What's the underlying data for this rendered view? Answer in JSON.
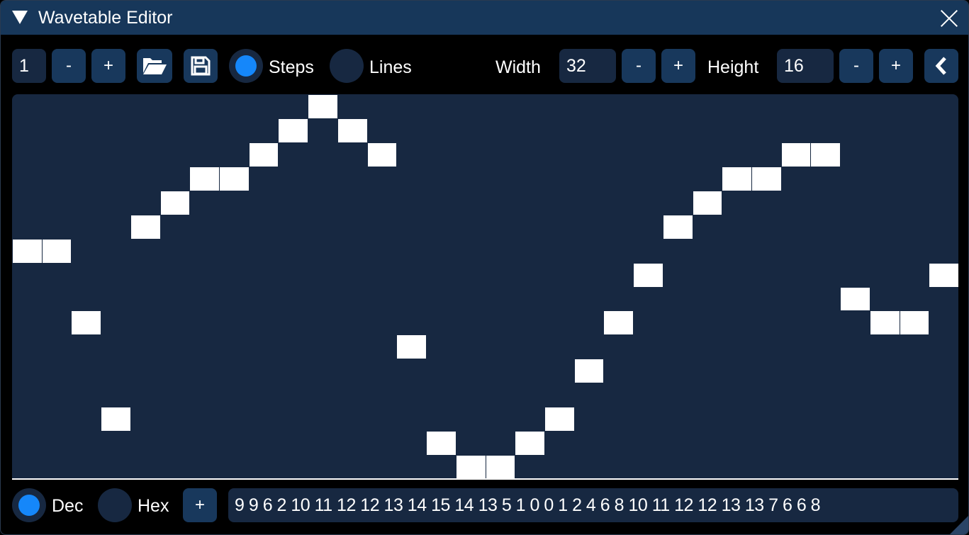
{
  "window": {
    "title": "Wavetable Editor",
    "collapse_icon": "triangle-down-icon",
    "close_icon": "close-icon"
  },
  "toolbar": {
    "index_value": "1",
    "minus": "-",
    "plus": "+",
    "open_icon": "folder-open-icon",
    "save_icon": "floppy-disk-icon",
    "mode_options": [
      {
        "label": "Steps",
        "selected": true
      },
      {
        "label": "Lines",
        "selected": false
      }
    ],
    "width_label": "Width",
    "width_value": "32",
    "height_label": "Height",
    "height_value": "16",
    "collapse_icon": "chevron-left-icon"
  },
  "colors": {
    "accent": "#1587fa",
    "title_bar": "#17375a",
    "button": "#18385c",
    "panel": "#172841"
  },
  "wave": {
    "width": 32,
    "height": 16,
    "values": [
      9,
      9,
      6,
      2,
      10,
      11,
      12,
      12,
      13,
      14,
      15,
      14,
      13,
      5,
      1,
      0,
      0,
      1,
      2,
      4,
      6,
      8,
      10,
      11,
      12,
      12,
      13,
      13,
      7,
      6,
      6,
      8
    ]
  },
  "footer": {
    "format_options": [
      {
        "label": "Dec",
        "selected": true
      },
      {
        "label": "Hex",
        "selected": false
      }
    ],
    "add_label": "+",
    "values_text": "9 9 6 2 10 11 12 12 13 14 15 14 13 5 1 0 0 1 2 4 6 8 10 11 12 12 13 13 7 6 6 8"
  }
}
